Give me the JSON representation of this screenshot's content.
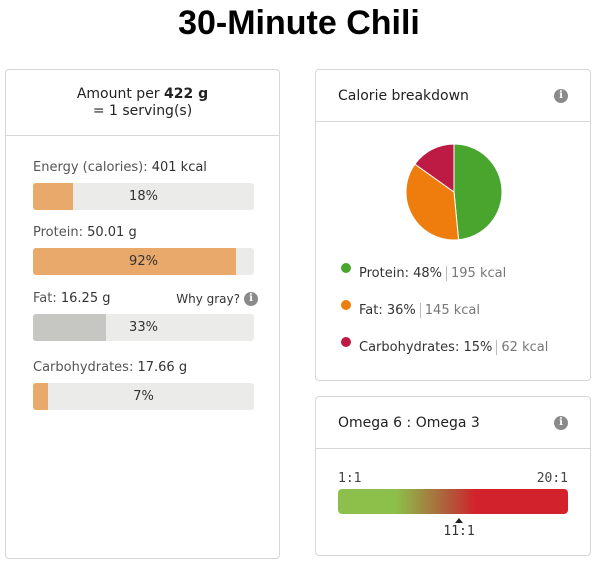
{
  "page": {
    "title": "30-Minute Chili"
  },
  "amount": {
    "prefix": "Amount per",
    "grams": "422 g",
    "serving": "= 1 serving(s)"
  },
  "nutrients": [
    {
      "label": "Energy (calories):",
      "value": "401 kcal",
      "pct_text": "18%",
      "pct": 18,
      "color": "#e8a96b"
    },
    {
      "label": "Protein:",
      "value": "50.01 g",
      "pct_text": "92%",
      "pct": 92,
      "color": "#e8a96b"
    },
    {
      "label": "Fat:",
      "value": "16.25 g",
      "pct_text": "33%",
      "pct": 33,
      "color": "#c6c6c3"
    },
    {
      "label": "Carbohydrates:",
      "value": "17.66 g",
      "pct_text": "7%",
      "pct": 7,
      "color": "#e8a96b"
    }
  ],
  "fat_note": {
    "why_gray": "Why gray?",
    "icon": "info-icon"
  },
  "calorie_breakdown": {
    "title": "Calorie breakdown",
    "icon": "info-icon",
    "items": [
      {
        "name": "Protein:",
        "pct_text": "48%",
        "kcal": "195 kcal",
        "pct": 48,
        "color": "#4aa52e"
      },
      {
        "name": "Fat:",
        "pct_text": "36%",
        "kcal": "145 kcal",
        "pct": 36,
        "color": "#ef7d0e"
      },
      {
        "name": "Carbohydrates:",
        "pct_text": "15%",
        "kcal": "62 kcal",
        "pct": 15,
        "color": "#be1b44"
      }
    ]
  },
  "omega": {
    "title": "Omega 6 : Omega 3",
    "icon": "info-icon",
    "min_label": "1:1",
    "max_label": "20:1",
    "value_label": "11:1",
    "value": 11,
    "min": 1,
    "max": 20
  }
}
